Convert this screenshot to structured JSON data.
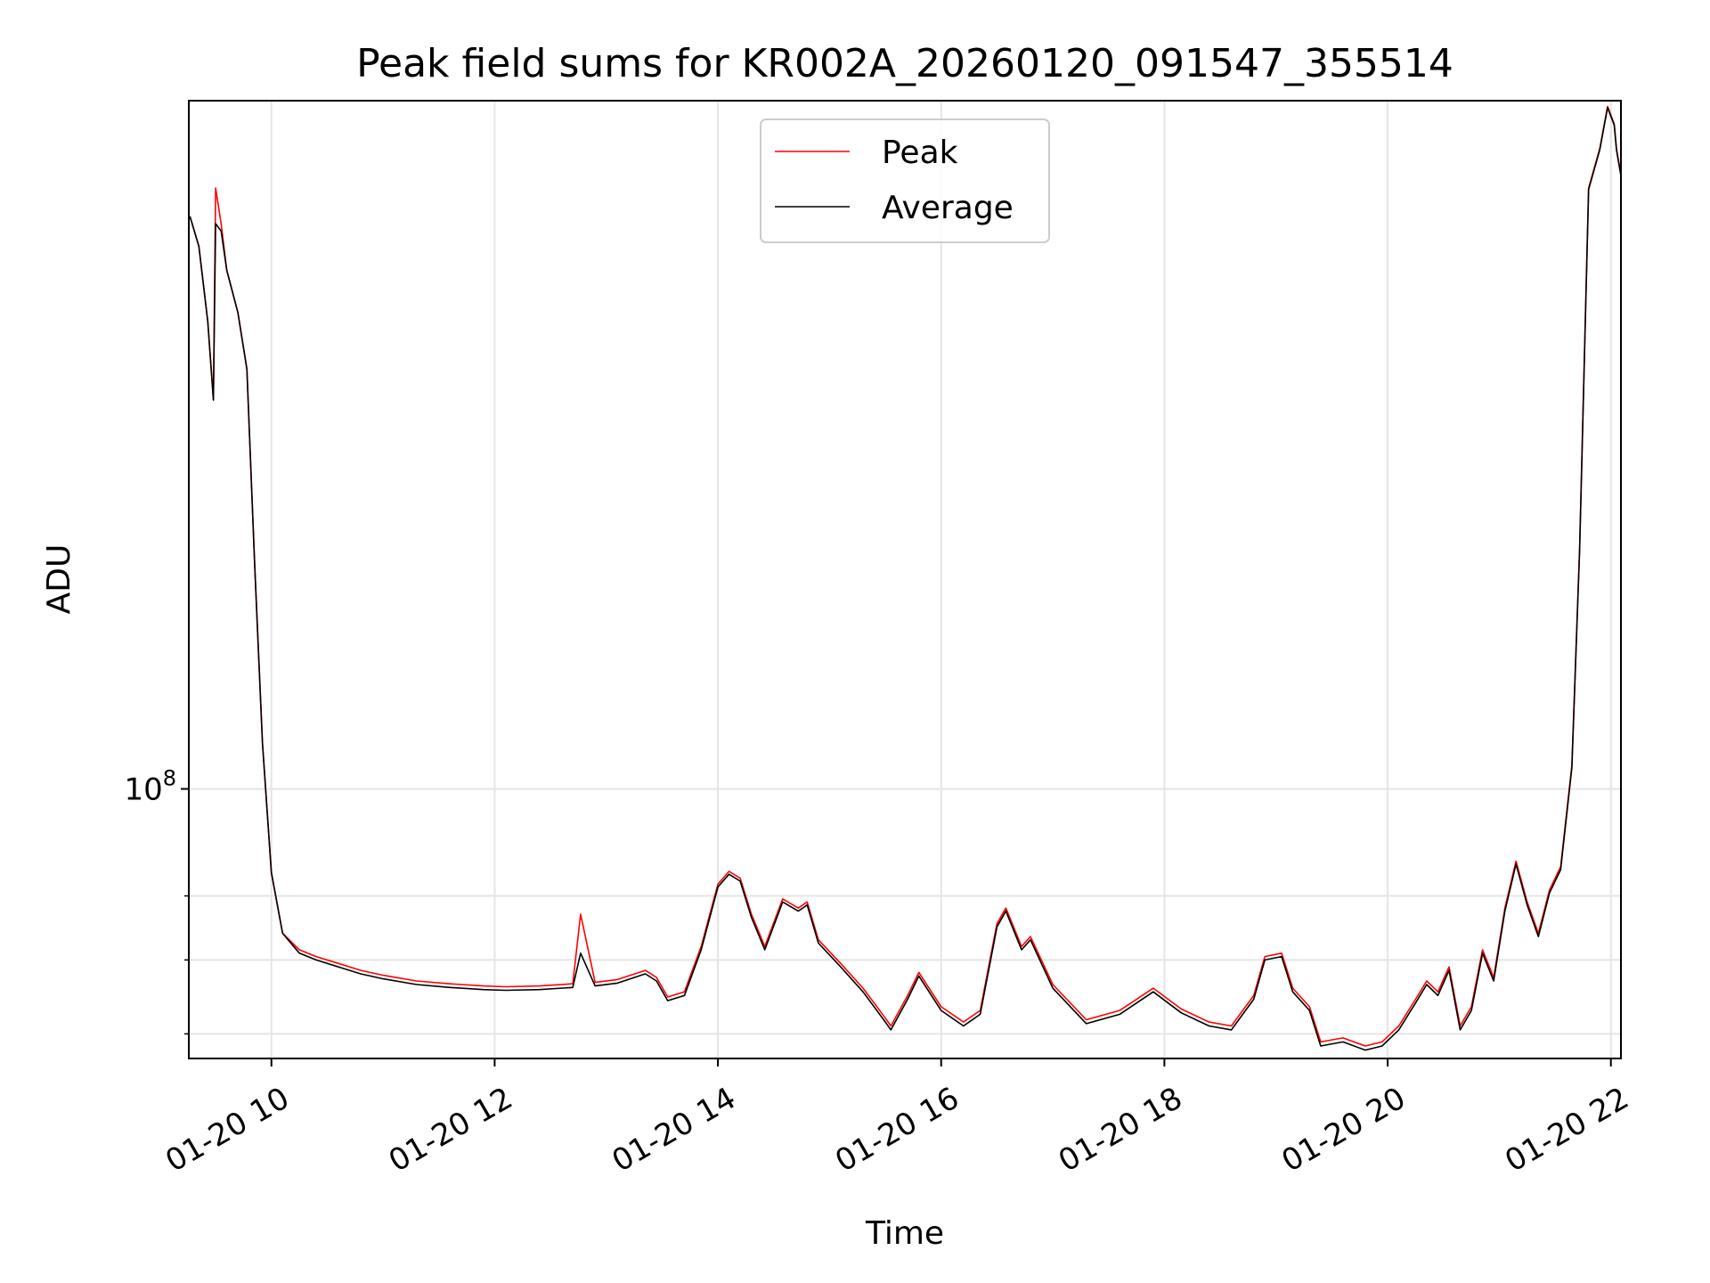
{
  "chart_data": {
    "type": "line",
    "title": "Peak field sums for KR002A_20260120_091547_355514",
    "xlabel": "Time",
    "ylabel": "ADU",
    "yscale": "log",
    "xlim": [
      9.26,
      22.09
    ],
    "ylim": [
      57000000,
      420000000
    ],
    "x_ticks": [
      {
        "value": 10,
        "label": "01-20 10"
      },
      {
        "value": 12,
        "label": "01-20 12"
      },
      {
        "value": 14,
        "label": "01-20 14"
      },
      {
        "value": 16,
        "label": "01-20 16"
      },
      {
        "value": 18,
        "label": "01-20 18"
      },
      {
        "value": 20,
        "label": "01-20 20"
      },
      {
        "value": 22,
        "label": "01-20 22"
      }
    ],
    "y_major_ticks": [
      {
        "value": 100000000,
        "base": "10",
        "exponent": "8"
      }
    ],
    "y_minor_ticks": [
      60000000,
      70000000,
      80000000
    ],
    "grid": true,
    "legend_position": "upper center",
    "x": [
      9.27,
      9.35,
      9.43,
      9.48,
      9.5,
      9.55,
      9.6,
      9.7,
      9.78,
      9.85,
      9.92,
      10.0,
      10.1,
      10.25,
      10.4,
      10.6,
      10.8,
      11.0,
      11.3,
      11.6,
      11.9,
      12.1,
      12.4,
      12.7,
      12.77,
      12.9,
      13.1,
      13.35,
      13.45,
      13.55,
      13.7,
      13.85,
      14.0,
      14.1,
      14.2,
      14.3,
      14.42,
      14.58,
      14.72,
      14.8,
      14.9,
      15.1,
      15.3,
      15.5,
      15.55,
      15.7,
      15.8,
      16.0,
      16.2,
      16.35,
      16.5,
      16.58,
      16.72,
      16.8,
      17.0,
      17.3,
      17.6,
      17.9,
      18.15,
      18.4,
      18.6,
      18.8,
      18.9,
      19.05,
      19.15,
      19.3,
      19.4,
      19.6,
      19.8,
      19.95,
      20.1,
      20.25,
      20.35,
      20.45,
      20.55,
      20.65,
      20.75,
      20.85,
      20.95,
      21.05,
      21.15,
      21.25,
      21.35,
      21.45,
      21.55,
      21.65,
      21.72,
      21.8,
      21.9,
      21.97,
      22.03,
      22.05,
      22.09
    ],
    "series": [
      {
        "name": "Peak",
        "color": "#ff0000",
        "values": [
          330000000,
          310000000,
          265000000,
          225000000,
          350000000,
          325000000,
          295000000,
          270000000,
          240000000,
          160000000,
          110000000,
          84000000,
          74000000,
          71500000,
          70500000,
          69500000,
          68500000,
          67800000,
          67000000,
          66600000,
          66300000,
          66200000,
          66300000,
          66600000,
          77000000,
          66800000,
          67200000,
          68500000,
          67500000,
          64800000,
          65500000,
          72000000,
          82000000,
          84200000,
          83000000,
          77000000,
          72000000,
          79500000,
          78000000,
          79000000,
          73000000,
          69500000,
          66000000,
          62000000,
          61000000,
          65000000,
          68200000,
          63500000,
          61500000,
          63000000,
          75500000,
          78000000,
          72000000,
          73500000,
          66500000,
          61800000,
          63000000,
          66000000,
          63200000,
          61500000,
          61000000,
          65000000,
          70500000,
          71000000,
          66000000,
          63500000,
          59000000,
          59500000,
          58500000,
          59000000,
          61000000,
          64500000,
          67000000,
          65500000,
          69000000,
          61000000,
          63500000,
          71500000,
          67500000,
          78000000,
          86000000,
          79000000,
          74000000,
          81000000,
          85000000,
          105000000,
          165000000,
          350000000,
          380000000,
          415000000,
          400000000,
          380000000,
          360000000
        ]
      },
      {
        "name": "Average",
        "color": "#000000",
        "values": [
          330000000,
          310000000,
          265000000,
          225000000,
          325000000,
          320000000,
          295000000,
          270000000,
          240000000,
          160000000,
          110000000,
          84000000,
          74000000,
          71000000,
          70000000,
          69000000,
          68000000,
          67300000,
          66500000,
          66100000,
          65800000,
          65700000,
          65800000,
          66100000,
          71000000,
          66300000,
          66700000,
          68000000,
          67000000,
          64300000,
          65000000,
          71500000,
          81500000,
          83700000,
          82500000,
          76500000,
          71500000,
          79000000,
          77500000,
          78500000,
          72500000,
          69000000,
          65500000,
          61500000,
          60500000,
          64500000,
          67700000,
          63000000,
          61000000,
          62500000,
          75000000,
          77500000,
          71500000,
          73000000,
          66000000,
          61300000,
          62500000,
          65500000,
          62700000,
          61000000,
          60500000,
          64500000,
          70000000,
          70500000,
          65500000,
          63000000,
          58500000,
          59000000,
          58000000,
          58500000,
          60500000,
          64000000,
          66500000,
          65000000,
          68500000,
          60500000,
          63000000,
          71000000,
          67000000,
          77500000,
          85500000,
          78500000,
          73500000,
          80500000,
          84500000,
          104500000,
          164500000,
          349000000,
          379000000,
          414000000,
          399000000,
          379000000,
          359000000
        ]
      }
    ]
  }
}
